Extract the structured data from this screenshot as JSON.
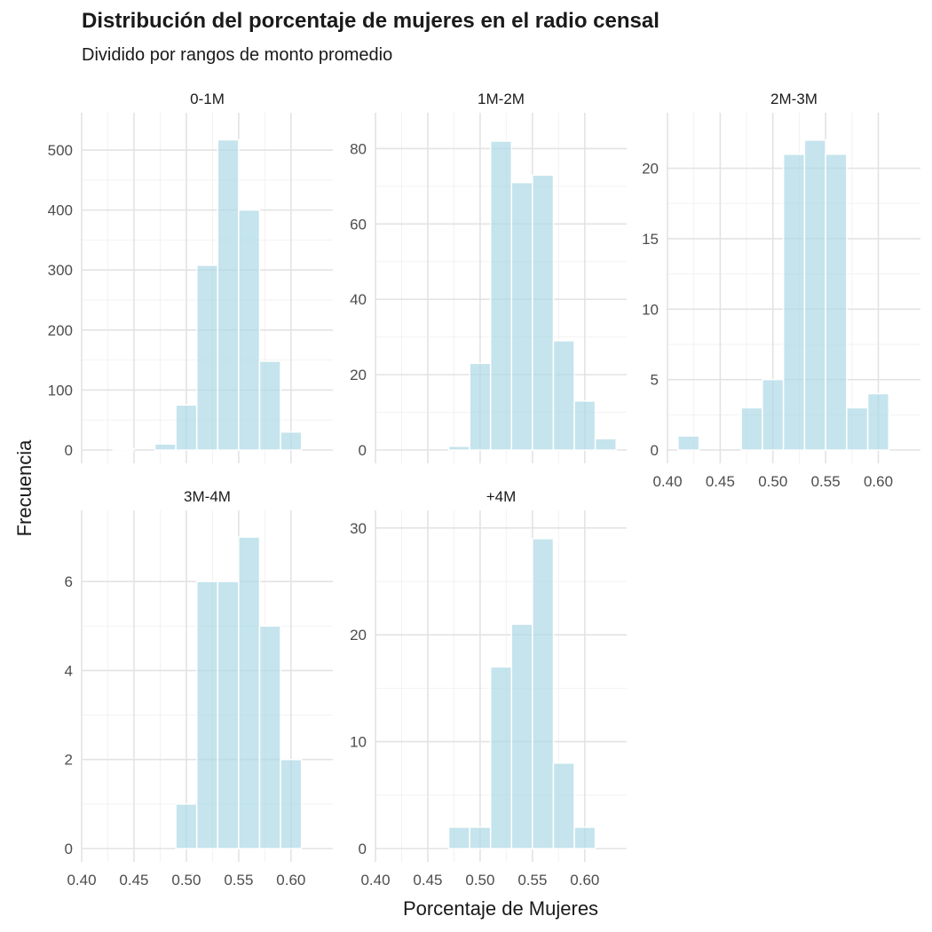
{
  "title": "Distribución del porcentaje de mujeres en el radio censal",
  "subtitle": "Dividido por rangos de monto promedio",
  "xlabel": "Porcentaje de Mujeres",
  "ylabel": "Frecuencia",
  "colors": {
    "bar_fill": "#add8e6",
    "bar_stroke": "#ffffff",
    "grid": "#e3e3e3"
  },
  "chart_data": {
    "type": "bar",
    "subtype": "faceted-histogram",
    "bin_width": 0.02,
    "bin_starts": [
      0.41,
      0.43,
      0.45,
      0.47,
      0.49,
      0.51,
      0.53,
      0.55,
      0.57,
      0.59,
      0.61
    ],
    "x_ticks": [
      0.4,
      0.45,
      0.5,
      0.55,
      0.6
    ],
    "x_tick_labels": [
      "0.40",
      "0.45",
      "0.50",
      "0.55",
      "0.60"
    ],
    "xlim": [
      0.4,
      0.64
    ],
    "grid": true,
    "facets": [
      {
        "label": "0-1M",
        "values": [
          0,
          2,
          0,
          10,
          75,
          308,
          517,
          400,
          148,
          30,
          0
        ],
        "ylim": [
          0,
          540
        ],
        "y_ticks": [
          0,
          100,
          200,
          300,
          400,
          500
        ]
      },
      {
        "label": "1M-2M",
        "values": [
          0,
          0,
          0,
          1,
          23,
          82,
          71,
          73,
          29,
          13,
          3
        ],
        "ylim": [
          0,
          86
        ],
        "y_ticks": [
          0,
          20,
          40,
          60,
          80
        ]
      },
      {
        "label": "2M-3M",
        "values": [
          1,
          0,
          0,
          3,
          5,
          21,
          22,
          21,
          3,
          4,
          0
        ],
        "ylim": [
          0,
          23
        ],
        "y_ticks": [
          0,
          5,
          10,
          15,
          20
        ]
      },
      {
        "label": "3M-4M",
        "values": [
          0,
          0,
          0,
          0,
          1,
          6,
          6,
          7,
          5,
          2,
          0
        ],
        "ylim": [
          0,
          7.3
        ],
        "y_ticks": [
          0,
          2,
          4,
          6
        ]
      },
      {
        "label": "+4M",
        "values": [
          0,
          0,
          0,
          2,
          2,
          17,
          21,
          29,
          8,
          2,
          0
        ],
        "ylim": [
          0,
          30.4
        ],
        "y_ticks": [
          0,
          10,
          20,
          30
        ]
      }
    ]
  }
}
